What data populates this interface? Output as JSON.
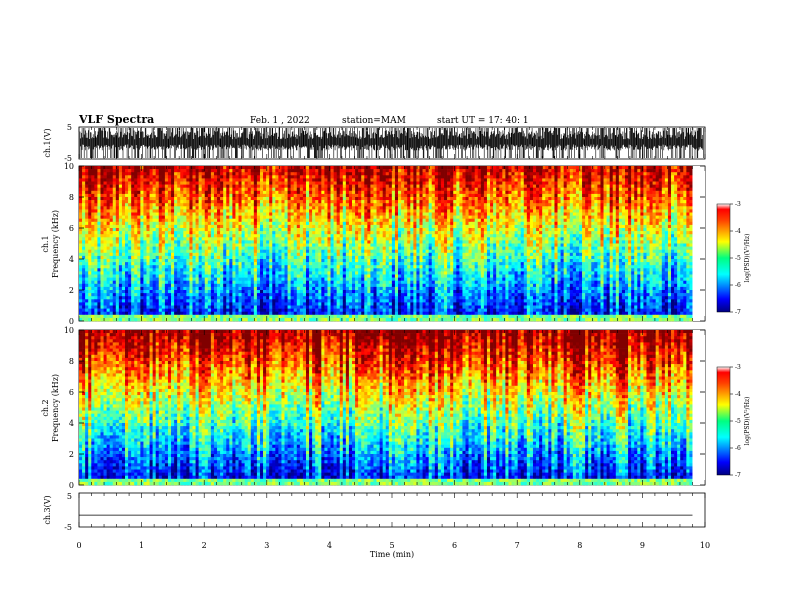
{
  "header": {
    "title": "VLF Spectra",
    "date": "Feb. 1 , 2022",
    "station": "station=MAM",
    "start_ut": "start UT =  17: 40: 1"
  },
  "chart_data": [
    {
      "type": "line",
      "panel": "ch1-waveform",
      "ylabel": "ch.1(V)",
      "ylim": [
        -5,
        5
      ],
      "y_ticks": [
        "5",
        "-5"
      ],
      "x_range_min": [
        0,
        10
      ],
      "note_signal": "dense impulsive waveform spanning nearly full range"
    },
    {
      "type": "heatmap",
      "panel": "ch1-spectrogram",
      "ylabel": "ch.1\nFrequency (kHz)",
      "ylabel_line1": "ch.1",
      "ylabel_line2": "Frequency (kHz)",
      "ylim": [
        0,
        10
      ],
      "y_ticks": [
        "0",
        "2",
        "4",
        "6",
        "8",
        "10"
      ],
      "x_range_min": [
        0,
        9.8
      ],
      "colorbar": {
        "label": "log(PSD)(V²/Hz)",
        "range": [
          -7,
          -3
        ],
        "ticks": [
          "-3",
          "-4",
          "-5",
          "-6",
          "-7"
        ]
      }
    },
    {
      "type": "heatmap",
      "panel": "ch2-spectrogram",
      "ylabel_line1": "ch.2",
      "ylabel_line2": "Frequency (kHz)",
      "ylim": [
        0,
        10
      ],
      "y_ticks": [
        "0",
        "2",
        "4",
        "6",
        "8",
        "10"
      ],
      "x_range_min": [
        0,
        9.8
      ],
      "colorbar": {
        "label": "log(PSD)(V²/Hz)",
        "range": [
          -7,
          -3
        ],
        "ticks": [
          "-3",
          "-4",
          "-5",
          "-6",
          "-7"
        ]
      }
    },
    {
      "type": "line",
      "panel": "ch3-waveform",
      "ylabel": "ch.3(V)",
      "ylim": [
        -5,
        5
      ],
      "y_ticks": [
        "5",
        "-5"
      ],
      "x": [
        0,
        9.8
      ],
      "y": [
        -1.5,
        -1.5
      ]
    }
  ],
  "x_axis": {
    "label": "Time (min)",
    "range": [
      0,
      10
    ],
    "ticks": [
      "0",
      "1",
      "2",
      "3",
      "4",
      "5",
      "6",
      "7",
      "8",
      "9",
      "10"
    ]
  },
  "colors": {
    "jet_low": "#00007f",
    "jet_mid": "#00ff80",
    "jet_high": "#ff0000"
  }
}
